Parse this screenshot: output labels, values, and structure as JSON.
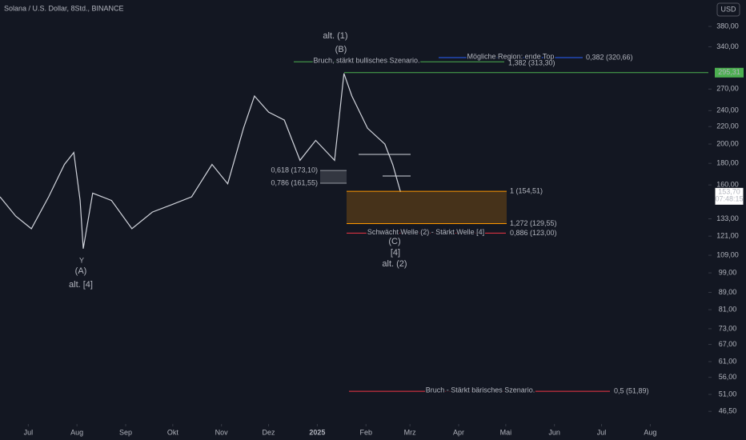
{
  "header": {
    "title": "Solana / U.S. Dollar, 8Std., BINANCE",
    "currency_button": "USD"
  },
  "chart_data": {
    "type": "line",
    "log_scale": true,
    "color": "#d1d4dc",
    "x": [
      -18,
      -8,
      2,
      13,
      23,
      29,
      33,
      35,
      41,
      53,
      66,
      79,
      92,
      104,
      117,
      127,
      137,
      144,
      153,
      163,
      173,
      183,
      195,
      201,
      206,
      216,
      227,
      232,
      237
    ],
    "values": [
      150,
      135,
      126,
      150,
      179,
      191,
      147,
      113,
      153,
      147,
      126,
      138,
      144,
      150,
      179,
      161,
      218,
      260,
      238,
      228,
      183,
      204,
      183,
      294,
      260,
      218,
      200,
      179,
      154
    ],
    "xlim": [
      -18,
      433
    ],
    "xticks": [
      {
        "value": 0,
        "label": "Jul"
      },
      {
        "value": 31,
        "label": "Aug"
      },
      {
        "value": 62,
        "label": "Sep"
      },
      {
        "value": 92,
        "label": "Okt"
      },
      {
        "value": 123,
        "label": "Nov"
      },
      {
        "value": 153,
        "label": "Dez"
      },
      {
        "value": 184,
        "label": "2025"
      },
      {
        "value": 215,
        "label": "Feb"
      },
      {
        "value": 243,
        "label": "Mrz"
      },
      {
        "value": 274,
        "label": "Apr"
      },
      {
        "value": 304,
        "label": "Mai"
      },
      {
        "value": 335,
        "label": "Jun"
      },
      {
        "value": 365,
        "label": "Jul"
      },
      {
        "value": 396,
        "label": "Aug"
      }
    ],
    "ylim": [
      43.4,
      439
    ],
    "yticks": [
      {
        "value": 380,
        "label": "380,00"
      },
      {
        "value": 340,
        "label": "340,00"
      },
      {
        "value": 270,
        "label": "270,00"
      },
      {
        "value": 240,
        "label": "240,00"
      },
      {
        "value": 220,
        "label": "220,00"
      },
      {
        "value": 200,
        "label": "200,00"
      },
      {
        "value": 180,
        "label": "180,00"
      },
      {
        "value": 160,
        "label": "160,00"
      },
      {
        "value": 133,
        "label": "133,00"
      },
      {
        "value": 121,
        "label": "121,00"
      },
      {
        "value": 109,
        "label": "109,00"
      },
      {
        "value": 99,
        "label": "99,00"
      },
      {
        "value": 89,
        "label": "89,00"
      },
      {
        "value": 81,
        "label": "81,00"
      },
      {
        "value": 73,
        "label": "73,00"
      },
      {
        "value": 67,
        "label": "67,00"
      },
      {
        "value": 61,
        "label": "61,00"
      },
      {
        "value": 56,
        "label": "56,00"
      },
      {
        "value": 51,
        "label": "51,00"
      },
      {
        "value": 46.5,
        "label": "46,50"
      }
    ],
    "levels": [
      {
        "text": "Mögliche Region: ende Top",
        "label": "0,382 (320,66)",
        "value": 320.66,
        "color": "#2962ff"
      },
      {
        "text": "Bruch, stärkt bullisches Szenario.",
        "label": "1,382 (313,30)",
        "value": 313.3,
        "color": "#4caf50"
      },
      {
        "label": "0,618 (173,10)",
        "value": 173.1,
        "color": "#9598a1"
      },
      {
        "label": "0,786 (161,55)",
        "value": 161.55,
        "color": "#9598a1"
      },
      {
        "label": "1 (154,51)",
        "value": 154.51,
        "color": "#ff9800"
      },
      {
        "label": "1,272 (129,55)",
        "value": 129.55,
        "color": "#ff9800"
      },
      {
        "text": "Schwächt Welle (2) - Stärkt Welle [4]",
        "label": "0,886 (123,00)",
        "value": 123.0,
        "color": "#f23645"
      },
      {
        "text": "Bruch - Stärkt bärisches Szenario.",
        "label": "0,5 (51,89)",
        "value": 51.89,
        "color": "#f23645"
      },
      {
        "label": "295,31",
        "value": 295.31,
        "color": "#4caf50"
      }
    ],
    "wave_labels": [
      {
        "text": "alt. (1)",
        "color": "#d1d4dc"
      },
      {
        "text": "(B)",
        "color": "#ff9800"
      },
      {
        "text": "Y",
        "color": "#ff9800"
      },
      {
        "text": "(A)",
        "color": "#ff9800"
      },
      {
        "text": "alt. [4]",
        "color": "#d1d4dc"
      },
      {
        "text": "(C)",
        "color": "#ff9800"
      },
      {
        "text": "[4]",
        "color": "#4caf50"
      },
      {
        "text": "alt. (2)",
        "color": "#d1d4dc"
      }
    ],
    "last_price": {
      "value": 153.7,
      "label": "153,70"
    },
    "countdown": "07:48:15"
  }
}
